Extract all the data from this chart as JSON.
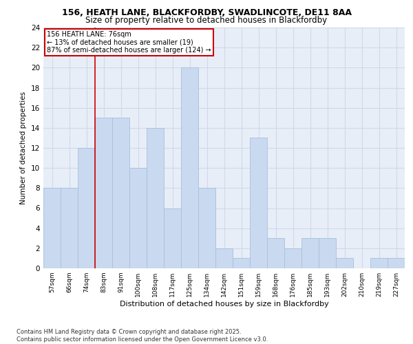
{
  "title_line1": "156, HEATH LANE, BLACKFORDBY, SWADLINCOTE, DE11 8AA",
  "title_line2": "Size of property relative to detached houses in Blackfordby",
  "xlabel": "Distribution of detached houses by size in Blackfordby",
  "ylabel": "Number of detached properties",
  "categories": [
    "57sqm",
    "66sqm",
    "74sqm",
    "83sqm",
    "91sqm",
    "100sqm",
    "108sqm",
    "117sqm",
    "125sqm",
    "134sqm",
    "142sqm",
    "151sqm",
    "159sqm",
    "168sqm",
    "176sqm",
    "185sqm",
    "193sqm",
    "202sqm",
    "210sqm",
    "219sqm",
    "227sqm"
  ],
  "values": [
    8,
    8,
    12,
    15,
    15,
    10,
    14,
    6,
    20,
    8,
    2,
    1,
    13,
    3,
    2,
    3,
    3,
    1,
    0,
    1,
    1
  ],
  "bar_color": "#c9d9ef",
  "bar_edge_color": "#a8c0de",
  "grid_color": "#d0d8e8",
  "background_color": "#e8eef8",
  "vline_color": "#cc0000",
  "vline_pos": 2.5,
  "annotation_text": "156 HEATH LANE: 76sqm\n← 13% of detached houses are smaller (19)\n87% of semi-detached houses are larger (124) →",
  "annotation_box_color": "#cc0000",
  "footer": "Contains HM Land Registry data © Crown copyright and database right 2025.\nContains public sector information licensed under the Open Government Licence v3.0.",
  "ylim": [
    0,
    24
  ],
  "yticks": [
    0,
    2,
    4,
    6,
    8,
    10,
    12,
    14,
    16,
    18,
    20,
    22,
    24
  ]
}
